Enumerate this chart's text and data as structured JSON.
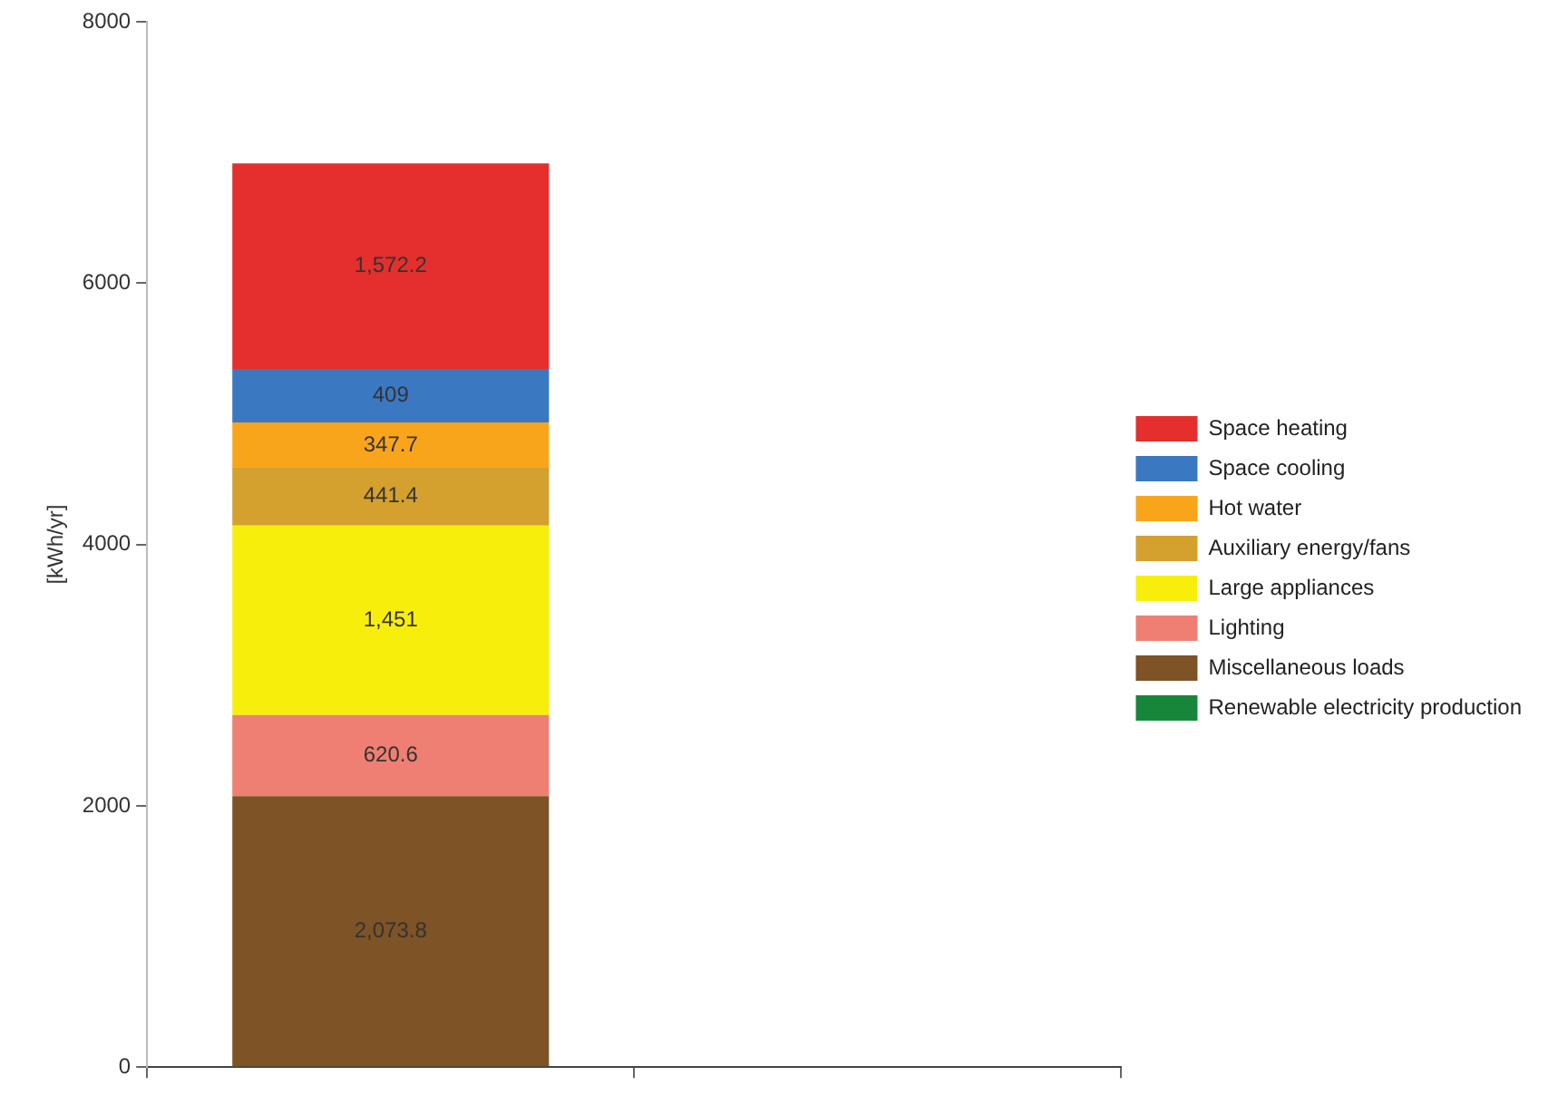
{
  "chart_data": {
    "type": "bar",
    "stacked": true,
    "ylabel": "[kWh/yr]",
    "categories": [
      null,
      null
    ],
    "ylim": [
      0,
      8000
    ],
    "yticks": [
      0,
      2000,
      4000,
      6000,
      8000
    ],
    "grid": false,
    "legend": "right",
    "series": [
      {
        "name": "Renewable electricity production",
        "color": "#17863a",
        "values": [
          null,
          null
        ]
      },
      {
        "name": "Miscellaneous loads",
        "color": "#7e5325",
        "values": [
          2073.8,
          null
        ],
        "value_labels": [
          "2,073.8",
          null
        ]
      },
      {
        "name": "Lighting",
        "color": "#ef7f72",
        "values": [
          620.6,
          null
        ],
        "value_labels": [
          "620.6",
          null
        ]
      },
      {
        "name": "Large appliances",
        "color": "#f8ee0c",
        "values": [
          1451,
          null
        ],
        "value_labels": [
          "1,451",
          null
        ]
      },
      {
        "name": "Auxiliary energy/fans",
        "color": "#d4a02e",
        "values": [
          441.4,
          null
        ],
        "value_labels": [
          "441.4",
          null
        ]
      },
      {
        "name": "Hot water",
        "color": "#f9a51c",
        "values": [
          347.7,
          null
        ],
        "value_labels": [
          "347.7",
          null
        ]
      },
      {
        "name": "Space cooling",
        "color": "#3a78c2",
        "values": [
          409,
          null
        ],
        "value_labels": [
          "409",
          null
        ]
      },
      {
        "name": "Space heating",
        "color": "#e52f2d",
        "values": [
          1572.2,
          null
        ],
        "value_labels": [
          "1,572.2",
          null
        ]
      }
    ]
  }
}
